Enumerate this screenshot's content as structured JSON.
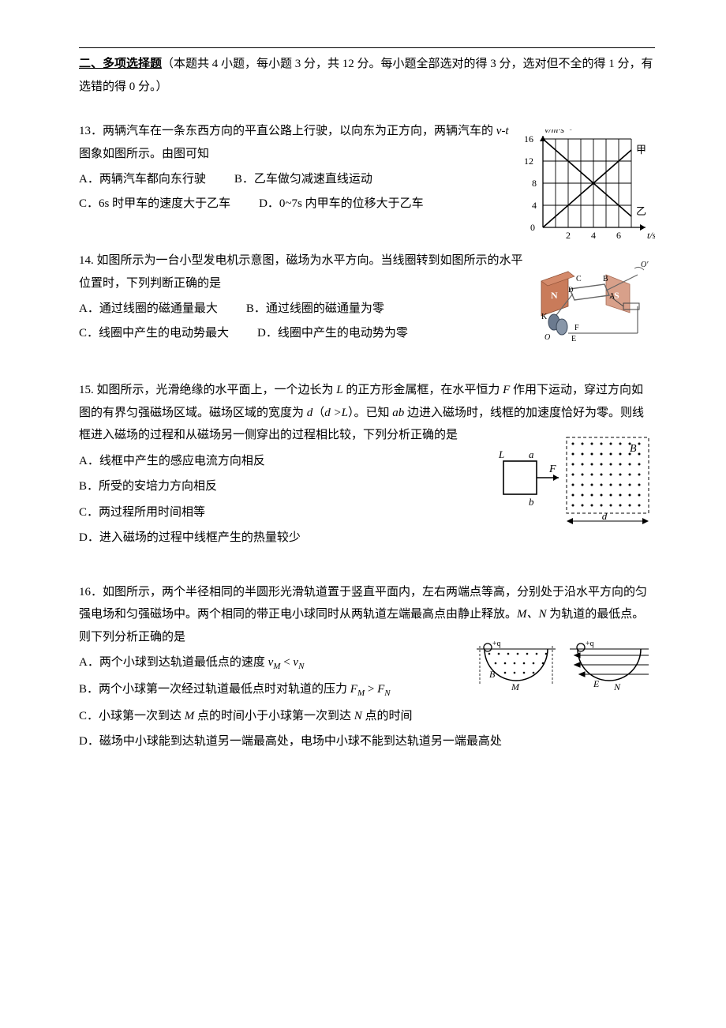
{
  "section": {
    "title": "二、多项选择题",
    "desc": "（本题共 4 小题，每小题 3 分，共 12 分。每小题全部选对的得 3 分，选对但不全的得 1 分，有选错的得 0 分。）"
  },
  "q13": {
    "num": "13．",
    "stem1": "两辆汽车在一条东西方向的平直公路上行驶，以向东为正方向，两辆汽车的 ",
    "stem_vt": "v-t",
    "stem2": " 图象如图所示。由图可知",
    "optA": "A．两辆汽车都向东行驶",
    "optB": "B．乙车做匀减速直线运动",
    "optC": "C．6s 时甲车的速度大于乙车",
    "optD": "D．0~7s 内甲车的位移大于乙车",
    "chart": {
      "type": "line",
      "xlabel": "t/s",
      "ylabel": "v/m·s⁻¹",
      "xlim": [
        0,
        7
      ],
      "ylim": [
        0,
        16
      ],
      "xticks": [
        0,
        2,
        4,
        6
      ],
      "yticks": [
        4,
        8,
        12,
        16
      ],
      "series": [
        {
          "name": "甲",
          "points": [
            [
              0,
              0
            ],
            [
              7,
              14
            ]
          ],
          "color": "#000000"
        },
        {
          "name": "乙",
          "points": [
            [
              0,
              16
            ],
            [
              7,
              2
            ]
          ],
          "color": "#000000"
        }
      ],
      "label_jia": "甲",
      "label_yi": "乙",
      "grid_color": "#000000",
      "background": "#ffffff",
      "line_width": 1.2,
      "font_size": 12
    }
  },
  "q14": {
    "num": "14.  ",
    "stem": "如图所示为一台小型发电机示意图，磁场为水平方向。当线圈转到如图所示的水平位置时，下列判断正确的是",
    "optA": "A．通过线圈的磁通量最大",
    "optB": "B．通过线圈的磁通量为零",
    "optC": "C．线圈中产生的电动势最大",
    "optD": "D．线圈中产生的电动势为零",
    "figure": {
      "type": "generator-diagram",
      "labels": {
        "N": "N",
        "S": "S",
        "A": "A",
        "B": "B",
        "C": "C",
        "D": "D",
        "E": "E",
        "F": "F",
        "K": "K",
        "O": "O",
        "O2": "O′"
      },
      "colors": {
        "magnet_n": "#c97b5a",
        "magnet_s": "#d8a08a",
        "coil": "#888888",
        "brush": "#6b7a8f",
        "bg": "#ffffff"
      },
      "font_size": 11
    }
  },
  "q15": {
    "num": "15.  ",
    "stem1": "如图所示，光滑绝缘的水平面上，一个边长为 ",
    "L": "L",
    "stem2": " 的正方形金属框，在水平恒力 ",
    "F": "F",
    "stem3": " 作用下运动，穿过方向如图的有界匀强磁场区域。磁场区域的宽度为 ",
    "d": "d",
    "stem4": "（",
    "ineq": "d >L",
    "stem5": "）。已知 ",
    "ab": "ab",
    "stem6": " 边进入磁场时，线框的加速度恰好为零。则线框进入磁场的过程和从磁场另一侧穿出的过程相比较，下列分析正确的是",
    "optA": "A．线框中产生的感应电流方向相反",
    "optB": "B．所受的安培力方向相反",
    "optC": "C．两过程所用时间相等",
    "optD": "D．进入磁场的过程中线框产生的热量较少",
    "figure": {
      "type": "square-frame-field",
      "labels": {
        "L": "L",
        "a": "a",
        "b": "b",
        "F": "F",
        "B": "B",
        "d": "d"
      },
      "colors": {
        "frame": "#000000",
        "field_dot": "#000000",
        "dash": "#000000",
        "bg": "#ffffff"
      },
      "dot_rows": 7,
      "dot_cols": 8,
      "font_size": 13,
      "line_width": 1.4
    }
  },
  "q16": {
    "num": "16．",
    "stem1": "如图所示，两个半径相同的半圆形光滑轨道置于竖直平面内，左右两端点等高，分别处于沿水平方向的匀强电场和匀强磁场中。两个相同的带正电小球同时从两轨道左端最高点由静止释放。",
    "MN": "M、N",
    "stem2": " 为轨道的最低点。则下列分析正确的是",
    "optA_pre": "A．两个小球到达轨道最低点的速度 ",
    "optA_rel": "v",
    "optA_m": "M",
    "optA_lt": " < ",
    "optA_n": "N",
    "optB_pre": "B．两个小球第一次经过轨道最低点时对轨道的压力 ",
    "optB_F": "F",
    "optB_m": "M",
    "optB_gt": " > ",
    "optB_n": "N",
    "optC_pre": "C．小球第一次到达 ",
    "optC_M": "M",
    "optC_mid": " 点的时间小于小球第一次到达 ",
    "optC_N": "N",
    "optC_end": " 点的时间",
    "optD": "D．磁场中小球能到达轨道另一端最高处，电场中小球不能到达轨道另一端最高处",
    "figure": {
      "type": "two-semicircles",
      "labels": {
        "q": "+q",
        "B": "B",
        "M": "M",
        "E": "E",
        "N": "N"
      },
      "colors": {
        "track": "#000000",
        "dot": "#000000",
        "arrow": "#000000",
        "bg": "#ffffff"
      },
      "dot_rows": 3,
      "dot_cols": 7,
      "font_size": 12,
      "line_width": 1.3
    }
  }
}
